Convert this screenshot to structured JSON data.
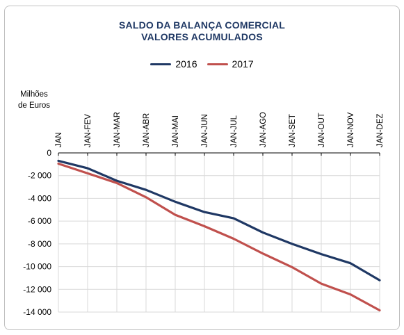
{
  "chart_data": {
    "type": "line",
    "title": "SALDO DA BALANÇA COMERCIAL",
    "subtitle": "VALORES ACUMULADOS",
    "ylabel_lines": [
      "Milhões",
      "de Euros"
    ],
    "categories": [
      "JAN",
      "JAN-FEV",
      "JAN-MAR",
      "JAN-ABR",
      "JAN-MAI",
      "JAN-JUN",
      "JAN-JUL",
      "JAN-AGO",
      "JAN-SET",
      "JAN-OUT",
      "JAN-NOV",
      "JAN-DEZ"
    ],
    "ylim": [
      -14000,
      0
    ],
    "yticks": [
      0,
      -2000,
      -4000,
      -6000,
      -8000,
      -10000,
      -12000,
      -14000
    ],
    "ytick_labels": [
      "0",
      "-2 000",
      "-4 000",
      "-6 000",
      "-8 000",
      "-10 000",
      "-12 000",
      "-14 000"
    ],
    "grid": true,
    "legend_position": "top",
    "series": [
      {
        "name": "2016",
        "color": "#1f3864",
        "values": [
          -700,
          -1350,
          -2450,
          -3250,
          -4300,
          -5200,
          -5750,
          -7000,
          -8000,
          -8900,
          -9700,
          -11200
        ]
      },
      {
        "name": "2017",
        "color": "#c0504d",
        "values": [
          -950,
          -1800,
          -2650,
          -3900,
          -5450,
          -6450,
          -7550,
          -8850,
          -10050,
          -11500,
          -12450,
          -13850
        ]
      }
    ]
  }
}
